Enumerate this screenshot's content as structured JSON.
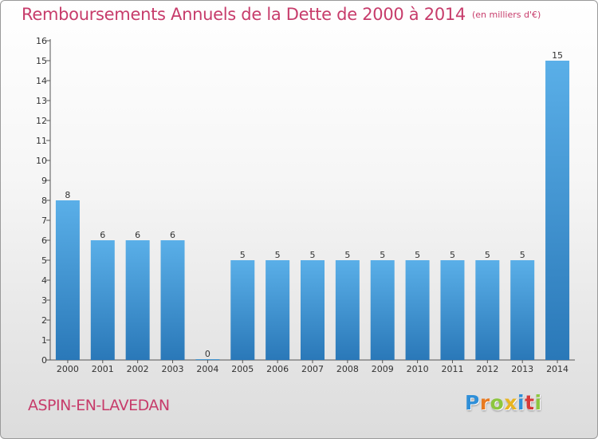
{
  "title": {
    "main": "Remboursements Annuels de la Dette de 2000 à 2014",
    "unit": "(en milliers d'€)"
  },
  "commune": "ASPIN-EN-LAVEDAN",
  "logo": {
    "letters": [
      {
        "char": "P",
        "color": "#2f8fd8"
      },
      {
        "char": "r",
        "color": "#e87a20"
      },
      {
        "char": "o",
        "color": "#8cc63f"
      },
      {
        "char": "x",
        "color": "#e8b420"
      },
      {
        "char": "i",
        "color": "#2f8fd8"
      },
      {
        "char": "t",
        "color": "#d63a3a"
      },
      {
        "char": "i",
        "color": "#8cc63f"
      }
    ]
  },
  "colors": {
    "title": "#c73c6b",
    "bar_top": "#5aafe8",
    "bar_bottom": "#2a78b8"
  },
  "chart_data": {
    "type": "bar",
    "title": "Remboursements Annuels de la Dette de 2000 à 2014",
    "xlabel": "",
    "ylabel": "",
    "ylim": [
      0,
      16
    ],
    "yticks": [
      0,
      1,
      2,
      3,
      4,
      5,
      6,
      7,
      8,
      9,
      10,
      11,
      12,
      13,
      14,
      15,
      16
    ],
    "grid": false,
    "categories": [
      "2000",
      "2001",
      "2002",
      "2003",
      "2004",
      "2005",
      "2006",
      "2007",
      "2008",
      "2009",
      "2010",
      "2011",
      "2012",
      "2013",
      "2014"
    ],
    "values": [
      8,
      6,
      6,
      6,
      0,
      5,
      5,
      5,
      5,
      5,
      5,
      5,
      5,
      5,
      15
    ]
  }
}
